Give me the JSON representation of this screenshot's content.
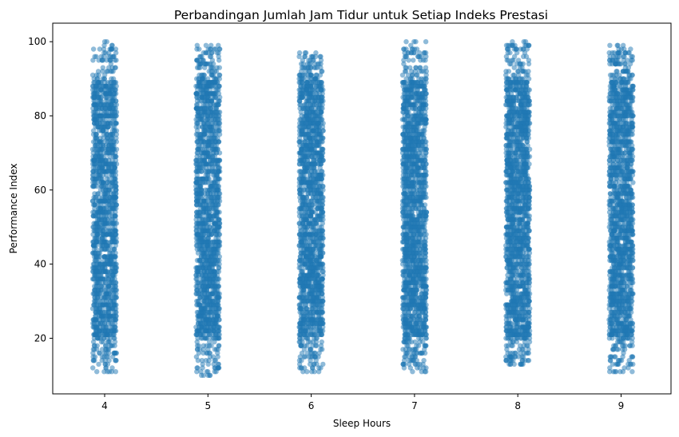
{
  "chart_data": {
    "type": "scatter",
    "title": "Perbandingan Jumlah Jam Tidur untuk Setiap Indeks Prestasi",
    "xlabel": "Sleep Hours",
    "ylabel": "Performance Index",
    "categories": [
      "4",
      "5",
      "6",
      "7",
      "8",
      "9"
    ],
    "x_ticks": [
      "4",
      "5",
      "6",
      "7",
      "8",
      "9"
    ],
    "y_ticks": [
      "20",
      "40",
      "60",
      "80",
      "100"
    ],
    "ylim": [
      5,
      105
    ],
    "grid": false,
    "legend": "none",
    "color": "#1f77b4",
    "point_alpha": 0.5,
    "series": [
      {
        "category": "4",
        "y_min": 11,
        "y_max": 100,
        "approx_points": 1500
      },
      {
        "category": "5",
        "y_min": 10,
        "y_max": 99,
        "approx_points": 1600
      },
      {
        "category": "6",
        "y_min": 11,
        "y_max": 97,
        "approx_points": 1650
      },
      {
        "category": "7",
        "y_min": 11,
        "y_max": 100,
        "approx_points": 1700
      },
      {
        "category": "8",
        "y_min": 13,
        "y_max": 100,
        "approx_points": 1700
      },
      {
        "category": "9",
        "y_min": 11,
        "y_max": 99,
        "approx_points": 1650
      }
    ]
  }
}
